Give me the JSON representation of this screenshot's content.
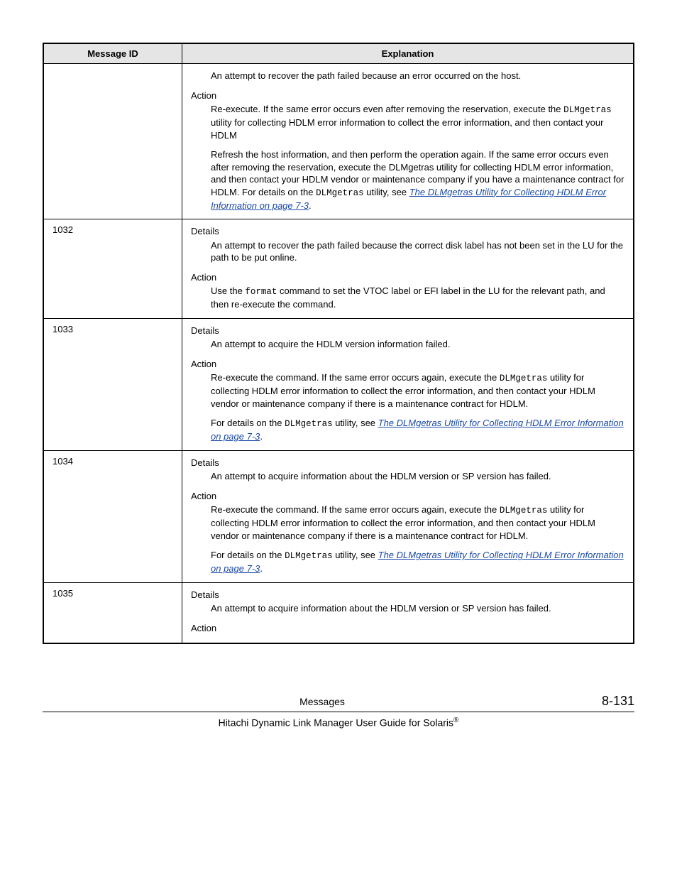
{
  "table": {
    "headers": {
      "id": "Message ID",
      "explanation": "Explanation"
    },
    "rows": [
      {
        "id": "",
        "blocks": [
          {
            "type": "indent",
            "parts": [
              {
                "t": "text",
                "v": "An attempt to recover the path failed because an error occurred on the host."
              }
            ]
          },
          {
            "type": "label",
            "parts": [
              {
                "t": "text",
                "v": "Action"
              }
            ]
          },
          {
            "type": "indent",
            "parts": [
              {
                "t": "text",
                "v": "Re-execute. If the same error occurs even after removing the reservation, execute the "
              },
              {
                "t": "mono",
                "v": "DLMgetras"
              },
              {
                "t": "text",
                "v": " utility for collecting HDLM error information to collect the error information, and then contact your HDLM"
              }
            ]
          },
          {
            "type": "indent",
            "parts": [
              {
                "t": "text",
                "v": "Refresh the host information, and then perform the operation again. If the same error occurs even after removing the reservation, execute the DLMgetras utility for collecting HDLM error information, and then contact your HDLM vendor or maintenance company if you have a maintenance contract for HDLM. For details on the "
              },
              {
                "t": "mono",
                "v": "DLMgetras"
              },
              {
                "t": "text",
                "v": " utility, see "
              },
              {
                "t": "link",
                "v": "The DLMgetras Utility for Collecting HDLM Error Information on page 7-3"
              },
              {
                "t": "text",
                "v": "."
              }
            ]
          }
        ]
      },
      {
        "id": "1032",
        "blocks": [
          {
            "type": "label",
            "parts": [
              {
                "t": "text",
                "v": "Details"
              }
            ]
          },
          {
            "type": "indent",
            "parts": [
              {
                "t": "text",
                "v": "An attempt to recover the path failed because the correct disk label has not been set in the LU for the path to be put online."
              }
            ]
          },
          {
            "type": "label",
            "parts": [
              {
                "t": "text",
                "v": "Action"
              }
            ]
          },
          {
            "type": "indent",
            "parts": [
              {
                "t": "text",
                "v": "Use the "
              },
              {
                "t": "mono",
                "v": "format"
              },
              {
                "t": "text",
                "v": " command to set the VTOC label or EFI label in the LU for the relevant path, and then re-execute the command."
              }
            ]
          }
        ]
      },
      {
        "id": "1033",
        "blocks": [
          {
            "type": "label",
            "parts": [
              {
                "t": "text",
                "v": "Details"
              }
            ]
          },
          {
            "type": "indent",
            "parts": [
              {
                "t": "text",
                "v": "An attempt to acquire the HDLM version information failed."
              }
            ]
          },
          {
            "type": "label",
            "parts": [
              {
                "t": "text",
                "v": "Action"
              }
            ]
          },
          {
            "type": "indent",
            "parts": [
              {
                "t": "text",
                "v": "Re-execute the command. If the same error occurs again, execute the "
              },
              {
                "t": "mono",
                "v": "DLMgetras"
              },
              {
                "t": "text",
                "v": " utility for collecting HDLM error information to collect the error information, and then contact your HDLM vendor or maintenance company if there is a maintenance contract for HDLM."
              }
            ]
          },
          {
            "type": "indent",
            "parts": [
              {
                "t": "text",
                "v": "For details on the "
              },
              {
                "t": "mono",
                "v": "DLMgetras"
              },
              {
                "t": "text",
                "v": " utility, see "
              },
              {
                "t": "link",
                "v": "The DLMgetras Utility for Collecting HDLM Error Information on page 7-3"
              },
              {
                "t": "text",
                "v": "."
              }
            ]
          }
        ]
      },
      {
        "id": "1034",
        "blocks": [
          {
            "type": "label",
            "parts": [
              {
                "t": "text",
                "v": "Details"
              }
            ]
          },
          {
            "type": "indent",
            "parts": [
              {
                "t": "text",
                "v": "An attempt to acquire information about the HDLM version or SP version has failed."
              }
            ]
          },
          {
            "type": "label",
            "parts": [
              {
                "t": "text",
                "v": "Action"
              }
            ]
          },
          {
            "type": "indent",
            "parts": [
              {
                "t": "text",
                "v": "Re-execute the command. If the same error occurs again, execute the "
              },
              {
                "t": "mono",
                "v": "DLMgetras"
              },
              {
                "t": "text",
                "v": " utility for collecting HDLM error information to collect the error information, and then contact your HDLM vendor or maintenance company if there is a maintenance contract for HDLM."
              }
            ]
          },
          {
            "type": "indent",
            "parts": [
              {
                "t": "text",
                "v": "For details on the "
              },
              {
                "t": "mono",
                "v": "DLMgetras"
              },
              {
                "t": "text",
                "v": " utility, see "
              },
              {
                "t": "link",
                "v": "The DLMgetras Utility for Collecting HDLM Error Information on page 7-3"
              },
              {
                "t": "text",
                "v": "."
              }
            ]
          }
        ]
      },
      {
        "id": "1035",
        "blocks": [
          {
            "type": "label",
            "parts": [
              {
                "t": "text",
                "v": "Details"
              }
            ]
          },
          {
            "type": "indent",
            "parts": [
              {
                "t": "text",
                "v": "An attempt to acquire information about the HDLM version or SP version has failed."
              }
            ]
          },
          {
            "type": "label",
            "parts": [
              {
                "t": "text",
                "v": "Action"
              }
            ]
          }
        ]
      }
    ]
  },
  "footer": {
    "center": "Messages",
    "page": "8-131",
    "bottom_prefix": "Hitachi Dynamic Link Manager User Guide for Solaris",
    "bottom_suffix": "®"
  }
}
